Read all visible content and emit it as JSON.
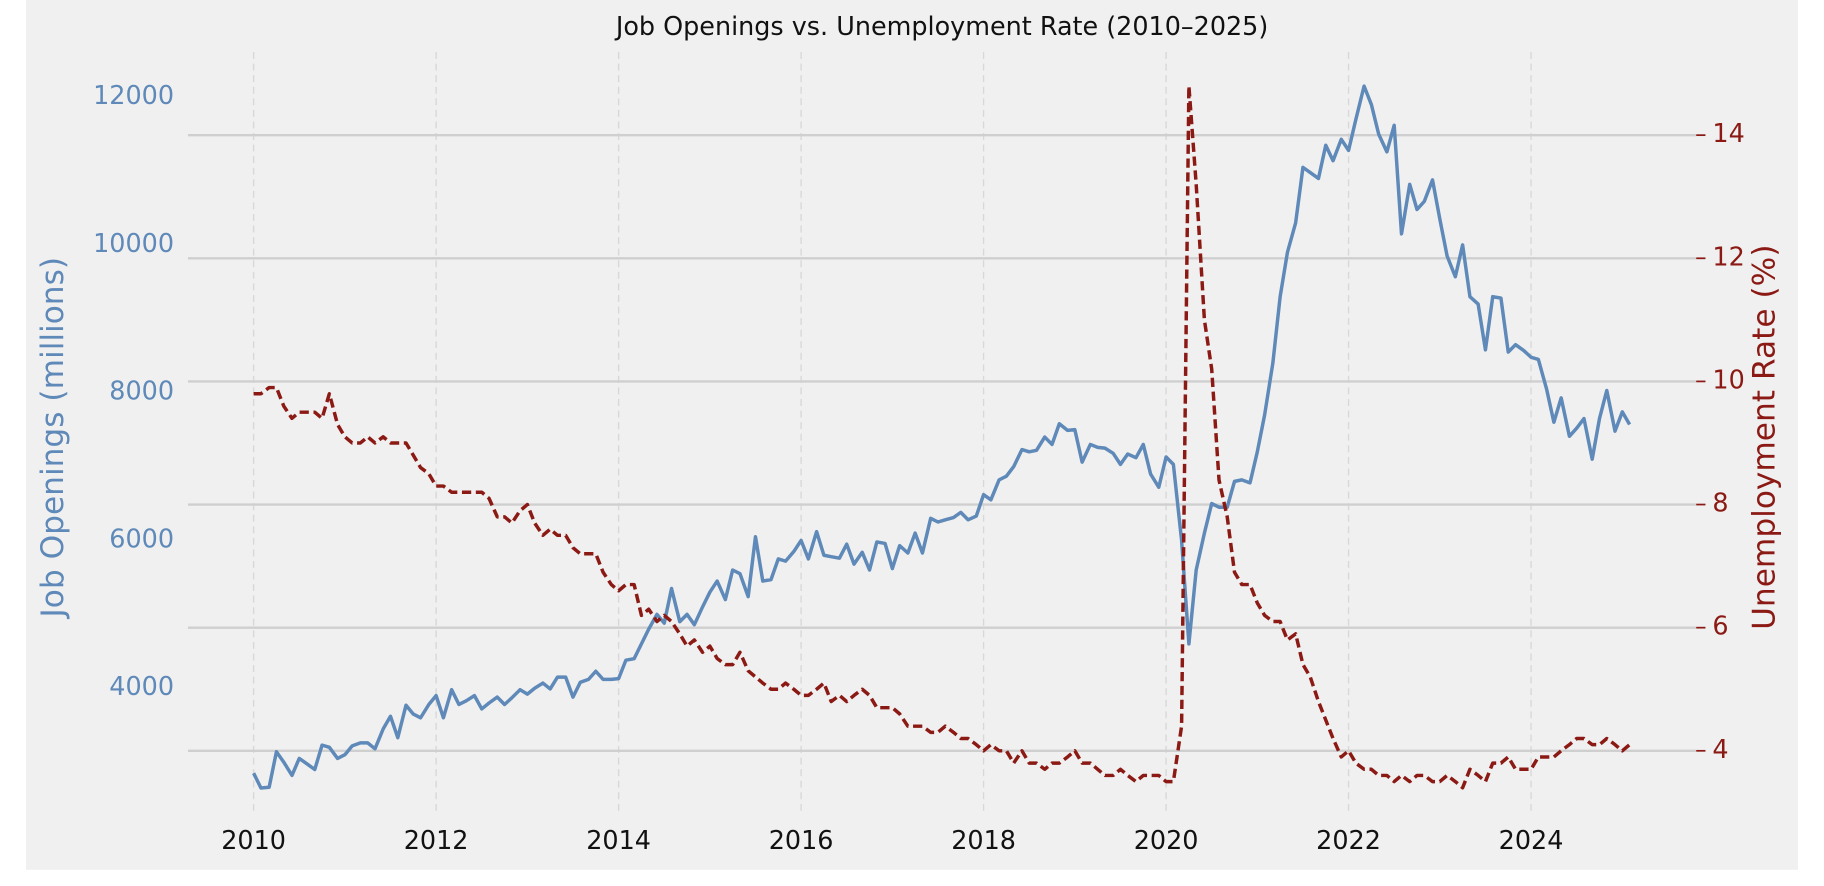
{
  "chart_data": {
    "type": "line",
    "title": "Job Openings vs. Unemployment Rate (2010–2025)",
    "ylabel": "Job Openings (millions)",
    "y2label": "Unemployment Rate (%)",
    "grid": true,
    "xlim": [
      2009.28,
      2025.81
    ],
    "xticks": [
      2010,
      2012,
      2014,
      2016,
      2018,
      2020,
      2022,
      2024
    ],
    "ylim": [
      2278,
      12611
    ],
    "yticks": [
      4000,
      6000,
      8000,
      10000,
      12000
    ],
    "y2lim": [
      2.95,
      15.35
    ],
    "y2ticks": [
      4,
      6,
      8,
      10,
      12,
      14
    ],
    "x": [
      2010,
      2010.08,
      2010.17,
      2010.25,
      2010.33,
      2010.42,
      2010.5,
      2010.58,
      2010.67,
      2010.75,
      2010.83,
      2010.92,
      2011,
      2011.08,
      2011.17,
      2011.25,
      2011.33,
      2011.42,
      2011.5,
      2011.58,
      2011.67,
      2011.75,
      2011.83,
      2011.92,
      2012,
      2012.08,
      2012.17,
      2012.25,
      2012.33,
      2012.42,
      2012.5,
      2012.58,
      2012.67,
      2012.75,
      2012.83,
      2012.92,
      2013,
      2013.08,
      2013.17,
      2013.25,
      2013.33,
      2013.42,
      2013.5,
      2013.58,
      2013.67,
      2013.75,
      2013.83,
      2013.92,
      2014,
      2014.08,
      2014.17,
      2014.25,
      2014.33,
      2014.42,
      2014.5,
      2014.58,
      2014.67,
      2014.75,
      2014.83,
      2014.92,
      2015,
      2015.08,
      2015.17,
      2015.25,
      2015.33,
      2015.42,
      2015.5,
      2015.58,
      2015.67,
      2015.75,
      2015.83,
      2015.92,
      2016,
      2016.08,
      2016.17,
      2016.25,
      2016.33,
      2016.42,
      2016.5,
      2016.58,
      2016.67,
      2016.75,
      2016.83,
      2016.92,
      2017,
      2017.08,
      2017.17,
      2017.25,
      2017.33,
      2017.42,
      2017.5,
      2017.58,
      2017.67,
      2017.75,
      2017.83,
      2017.92,
      2018,
      2018.08,
      2018.17,
      2018.25,
      2018.33,
      2018.42,
      2018.5,
      2018.58,
      2018.67,
      2018.75,
      2018.83,
      2018.92,
      2019,
      2019.08,
      2019.17,
      2019.25,
      2019.33,
      2019.42,
      2019.5,
      2019.58,
      2019.67,
      2019.75,
      2019.83,
      2019.92,
      2020,
      2020.08,
      2020.17,
      2020.25,
      2020.33,
      2020.42,
      2020.5,
      2020.58,
      2020.67,
      2020.75,
      2020.83,
      2020.92,
      2021,
      2021.08,
      2021.17,
      2021.25,
      2021.33,
      2021.42,
      2021.5,
      2021.58,
      2021.67,
      2021.75,
      2021.83,
      2021.92,
      2022,
      2022.08,
      2022.17,
      2022.25,
      2022.33,
      2022.42,
      2022.5,
      2022.58,
      2022.67,
      2022.75,
      2022.83,
      2022.92,
      2023,
      2023.08,
      2023.17,
      2023.25,
      2023.33,
      2023.42,
      2023.5,
      2023.58,
      2023.67,
      2023.75,
      2023.83,
      2023.92,
      2024,
      2024.08,
      2024.17,
      2024.25,
      2024.33,
      2024.42,
      2024.5,
      2024.58,
      2024.67,
      2024.75,
      2024.83,
      2024.92,
      2025,
      2025.08
    ],
    "series": [
      {
        "name": "Job Openings",
        "color": "#5e89b8",
        "axis": "y",
        "linestyle": "solid",
        "values": [
          2850,
          2650,
          2660,
          3140,
          3000,
          2820,
          3050,
          2980,
          2900,
          3230,
          3200,
          3050,
          3100,
          3220,
          3260,
          3260,
          3180,
          3450,
          3620,
          3330,
          3770,
          3650,
          3600,
          3780,
          3900,
          3600,
          3980,
          3780,
          3830,
          3900,
          3720,
          3800,
          3880,
          3780,
          3870,
          3980,
          3920,
          4000,
          4070,
          3990,
          4150,
          4150,
          3880,
          4080,
          4120,
          4230,
          4120,
          4120,
          4130,
          4380,
          4400,
          4600,
          4800,
          5000,
          4880,
          5350,
          4900,
          5000,
          4860,
          5100,
          5300,
          5450,
          5200,
          5600,
          5550,
          5240,
          6050,
          5450,
          5470,
          5750,
          5720,
          5850,
          6000,
          5750,
          6120,
          5800,
          5780,
          5760,
          5950,
          5680,
          5840,
          5600,
          5980,
          5960,
          5620,
          5930,
          5830,
          6100,
          5830,
          6300,
          6250,
          6280,
          6310,
          6380,
          6280,
          6330,
          6620,
          6550,
          6820,
          6870,
          7000,
          7230,
          7200,
          7220,
          7400,
          7300,
          7580,
          7490,
          7500,
          7060,
          7300,
          7260,
          7250,
          7180,
          7030,
          7170,
          7120,
          7300,
          6900,
          6720,
          7130,
          7030,
          6000,
          4600,
          5600,
          6100,
          6500,
          6450,
          6450,
          6800,
          6820,
          6780,
          7200,
          7700,
          8400,
          9300,
          9900,
          10300,
          11050,
          10980,
          10900,
          11350,
          11140,
          11430,
          11280,
          11700,
          12150,
          11900,
          11500,
          11260,
          11620,
          10150,
          10820,
          10480,
          10590,
          10880,
          10350,
          9850,
          9570,
          10000,
          9300,
          9200,
          8580,
          9300,
          9280,
          8550,
          8650,
          8570,
          8480,
          8450,
          8050,
          7600,
          7930,
          7410,
          7520,
          7650,
          7100,
          7650,
          8030,
          7480,
          7740,
          7570
        ]
      },
      {
        "name": "Unemployment Rate",
        "color": "#8b1a14",
        "axis": "y2",
        "linestyle": "dashed",
        "values": [
          9.8,
          9.8,
          9.9,
          9.9,
          9.6,
          9.4,
          9.5,
          9.5,
          9.5,
          9.4,
          9.8,
          9.3,
          9.1,
          9.0,
          9.0,
          9.1,
          9.0,
          9.1,
          9.0,
          9.0,
          9.0,
          8.8,
          8.6,
          8.5,
          8.3,
          8.3,
          8.2,
          8.2,
          8.2,
          8.2,
          8.2,
          8.1,
          7.8,
          7.8,
          7.7,
          7.9,
          8.0,
          7.7,
          7.5,
          7.6,
          7.5,
          7.5,
          7.3,
          7.2,
          7.2,
          7.2,
          6.9,
          6.7,
          6.6,
          6.7,
          6.7,
          6.2,
          6.3,
          6.1,
          6.2,
          6.1,
          5.9,
          5.7,
          5.8,
          5.6,
          5.7,
          5.5,
          5.4,
          5.4,
          5.6,
          5.3,
          5.2,
          5.1,
          5.0,
          5.0,
          5.1,
          5.0,
          4.9,
          4.9,
          5.0,
          5.1,
          4.8,
          4.9,
          4.8,
          4.9,
          5.0,
          4.9,
          4.7,
          4.7,
          4.7,
          4.6,
          4.4,
          4.4,
          4.4,
          4.3,
          4.3,
          4.4,
          4.3,
          4.2,
          4.2,
          4.1,
          4.0,
          4.1,
          4.0,
          4.0,
          3.8,
          4.0,
          3.8,
          3.8,
          3.7,
          3.8,
          3.8,
          3.9,
          4.0,
          3.8,
          3.8,
          3.7,
          3.6,
          3.6,
          3.7,
          3.6,
          3.5,
          3.6,
          3.6,
          3.6,
          3.5,
          3.5,
          4.4,
          14.8,
          13.2,
          11.0,
          10.2,
          8.4,
          7.8,
          6.9,
          6.7,
          6.7,
          6.4,
          6.2,
          6.1,
          6.1,
          5.8,
          5.9,
          5.4,
          5.2,
          4.8,
          4.5,
          4.2,
          3.9,
          4.0,
          3.8,
          3.7,
          3.7,
          3.6,
          3.6,
          3.5,
          3.6,
          3.5,
          3.6,
          3.6,
          3.5,
          3.5,
          3.6,
          3.5,
          3.4,
          3.7,
          3.6,
          3.5,
          3.8,
          3.8,
          3.9,
          3.7,
          3.7,
          3.7,
          3.9,
          3.9,
          3.9,
          4.0,
          4.1,
          4.2,
          4.2,
          4.1,
          4.1,
          4.2,
          4.1,
          4.0,
          4.1
        ]
      }
    ]
  }
}
